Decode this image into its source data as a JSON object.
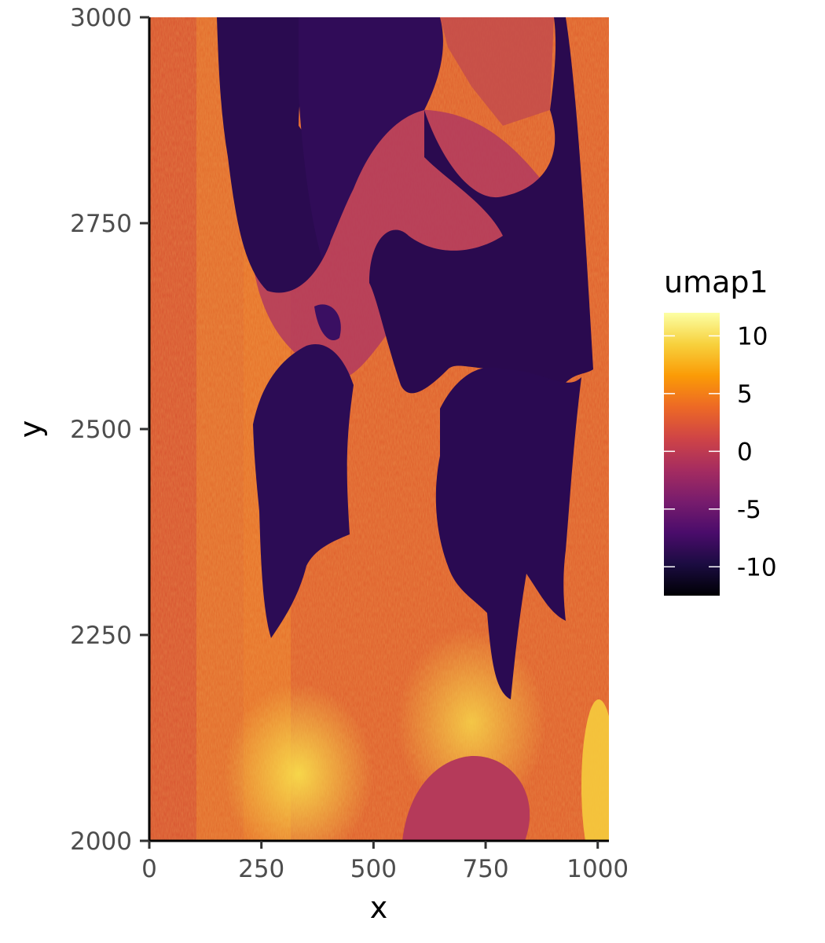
{
  "chart_data": {
    "type": "heatmap",
    "title": "",
    "xlabel": "x",
    "ylabel": "y",
    "xlim": [
      0,
      1025
    ],
    "ylim": [
      2000,
      3000
    ],
    "x_ticks": [
      0,
      250,
      500,
      750,
      1000
    ],
    "y_ticks": [
      2000,
      2250,
      2500,
      2750,
      3000
    ],
    "x_tick_labels": [
      "0",
      "250",
      "500",
      "750",
      "1000"
    ],
    "y_tick_labels": [
      "2000",
      "2250",
      "2500",
      "2750",
      "3000"
    ],
    "grid": false,
    "colorscale": "inferno",
    "colorscale_stops": [
      "#000004",
      "#1b0c41",
      "#4a0c6b",
      "#781c6d",
      "#a52c60",
      "#cf4446",
      "#ed6925",
      "#fb9b06",
      "#f7d13d",
      "#fcffa4"
    ],
    "color_range": [
      -12.5,
      12
    ],
    "legend": {
      "title": "umap1",
      "position": "right",
      "ticks": [
        10,
        5,
        0,
        -5,
        -10
      ],
      "tick_labels": [
        "10",
        "5",
        "0",
        "-5",
        "-10"
      ]
    },
    "value_field": "umap1",
    "background_value_range": [
      1,
      9
    ],
    "regions": [
      {
        "label": "upper-left dark tissue band",
        "value_approx": -9,
        "x_range": [
          150,
          380
        ],
        "y_range": [
          2760,
          3000
        ]
      },
      {
        "label": "upper-right dark tissue band",
        "value_approx": -9,
        "x_range": [
          550,
          960
        ],
        "y_range": [
          2560,
          3000
        ]
      },
      {
        "label": "left dark lobe",
        "value_approx": -9,
        "x_range": [
          230,
          450
        ],
        "y_range": [
          2250,
          2570
        ]
      },
      {
        "label": "right dark lobe",
        "value_approx": -9,
        "x_range": [
          620,
          930
        ],
        "y_range": [
          2170,
          2560
        ]
      },
      {
        "label": "central magenta region",
        "value_approx": 0,
        "x_range": [
          380,
          720
        ],
        "y_range": [
          2600,
          2850
        ]
      },
      {
        "label": "bottom bright band left",
        "value_approx": 11,
        "x_range": [
          270,
          470
        ],
        "y_range": [
          2000,
          2200
        ]
      },
      {
        "label": "bottom round magenta patch",
        "value_approx": 0,
        "x_range": [
          560,
          840
        ],
        "y_range": [
          2000,
          2100
        ]
      }
    ]
  }
}
